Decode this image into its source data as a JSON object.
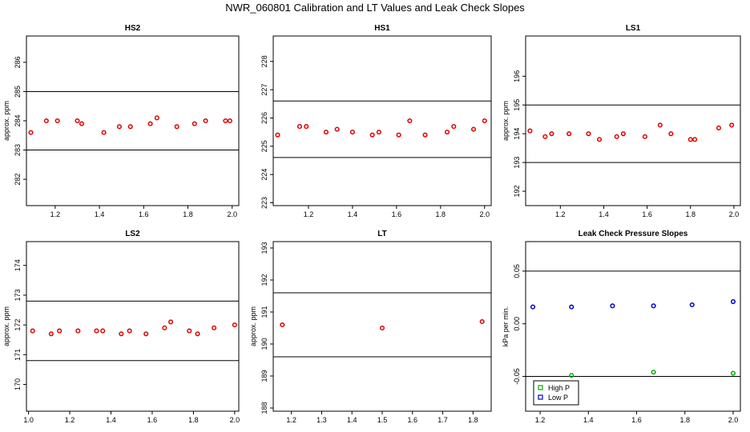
{
  "figure": {
    "title": "NWR_060801  Calibration and LT Values and Leak Check Slopes"
  },
  "chart_data": [
    {
      "id": "hs2",
      "type": "scatter",
      "title": "HS2",
      "ylabel": "approx. ppm",
      "xlim": [
        1.07,
        2.03
      ],
      "ylim": [
        281.1,
        286.9
      ],
      "xticks": [
        "1.2",
        "1.4",
        "1.6",
        "1.8",
        "2.0"
      ],
      "yticks": [
        "282",
        "283",
        "284",
        "285",
        "286"
      ],
      "hlines": [
        285.0,
        283.0
      ],
      "series": [
        {
          "color": "#dd0000",
          "x": [
            1.09,
            1.16,
            1.21,
            1.3,
            1.32,
            1.42,
            1.49,
            1.54,
            1.63,
            1.66,
            1.75,
            1.83,
            1.88,
            1.97,
            1.99
          ],
          "y": [
            283.6,
            284.0,
            284.0,
            284.0,
            283.9,
            283.6,
            283.8,
            283.8,
            283.9,
            284.1,
            283.8,
            283.9,
            284.0,
            284.0,
            284.0
          ]
        }
      ]
    },
    {
      "id": "hs1",
      "type": "scatter",
      "title": "HS1",
      "ylabel": "",
      "xlim": [
        1.04,
        2.03
      ],
      "ylim": [
        222.9,
        228.9
      ],
      "xticks": [
        "1.2",
        "1.4",
        "1.6",
        "1.8",
        "2.0"
      ],
      "yticks": [
        "223",
        "224",
        "225",
        "226",
        "227",
        "228"
      ],
      "hlines": [
        226.6,
        224.6
      ],
      "series": [
        {
          "color": "#dd0000",
          "x": [
            1.06,
            1.16,
            1.19,
            1.28,
            1.33,
            1.4,
            1.49,
            1.52,
            1.61,
            1.66,
            1.73,
            1.83,
            1.86,
            1.95,
            2.0
          ],
          "y": [
            225.4,
            225.7,
            225.7,
            225.5,
            225.6,
            225.5,
            225.4,
            225.5,
            225.4,
            225.9,
            225.4,
            225.5,
            225.7,
            225.6,
            225.9
          ]
        }
      ]
    },
    {
      "id": "ls1",
      "type": "scatter",
      "title": "LS1",
      "ylabel": "approx. ppm",
      "xlim": [
        1.04,
        2.03
      ],
      "ylim": [
        191.5,
        197.4
      ],
      "xticks": [
        "1.2",
        "1.4",
        "1.6",
        "1.8",
        "2.0"
      ],
      "yticks": [
        "192",
        "193",
        "194",
        "195",
        "196"
      ],
      "hlines": [
        195.0,
        193.0
      ],
      "series": [
        {
          "color": "#dd0000",
          "x": [
            1.06,
            1.13,
            1.16,
            1.24,
            1.33,
            1.38,
            1.46,
            1.49,
            1.59,
            1.66,
            1.71,
            1.8,
            1.82,
            1.93,
            1.99
          ],
          "y": [
            194.1,
            193.9,
            194.0,
            194.0,
            194.0,
            193.8,
            193.9,
            194.0,
            193.9,
            194.3,
            194.0,
            193.8,
            193.8,
            194.2,
            194.3
          ]
        }
      ]
    },
    {
      "id": "ls2",
      "type": "scatter",
      "title": "LS2",
      "ylabel": "approx. ppm",
      "xlim": [
        0.99,
        2.02
      ],
      "ylim": [
        169.1,
        174.8
      ],
      "xticks": [
        "1.0",
        "1.2",
        "1.4",
        "1.6",
        "1.8",
        "2.0"
      ],
      "yticks": [
        "170",
        "171",
        "172",
        "173",
        "174"
      ],
      "hlines": [
        172.8,
        170.8
      ],
      "series": [
        {
          "color": "#dd0000",
          "x": [
            1.02,
            1.11,
            1.15,
            1.24,
            1.33,
            1.36,
            1.45,
            1.49,
            1.57,
            1.66,
            1.69,
            1.78,
            1.82,
            1.9,
            2.0
          ],
          "y": [
            171.8,
            171.7,
            171.8,
            171.8,
            171.8,
            171.8,
            171.7,
            171.8,
            171.7,
            171.9,
            172.1,
            171.8,
            171.7,
            171.9,
            172.0
          ]
        }
      ]
    },
    {
      "id": "lt",
      "type": "scatter",
      "title": "LT",
      "ylabel": "approx. ppm",
      "xlim": [
        1.14,
        1.86
      ],
      "ylim": [
        187.9,
        193.2
      ],
      "xticks": [
        "1.2",
        "1.3",
        "1.4",
        "1.5",
        "1.6",
        "1.7",
        "1.8"
      ],
      "yticks": [
        "188",
        "189",
        "190",
        "191",
        "192",
        "193"
      ],
      "hlines": [
        191.6,
        189.6
      ],
      "series": [
        {
          "color": "#dd0000",
          "x": [
            1.17,
            1.5,
            1.83
          ],
          "y": [
            190.6,
            190.5,
            190.7
          ]
        }
      ]
    },
    {
      "id": "leak",
      "type": "scatter",
      "title": "Leak Check Pressure Slopes",
      "ylabel": "kPa per min.",
      "xlim": [
        1.14,
        2.03
      ],
      "ylim": [
        -0.083,
        0.078
      ],
      "xticks": [
        "1.2",
        "1.4",
        "1.6",
        "1.8",
        "2.0"
      ],
      "yticks": [
        "-0.05",
        "0.00",
        "0.05"
      ],
      "hlines": [
        0.05,
        -0.05
      ],
      "legend": {
        "position": "bottom-left",
        "entries": [
          {
            "label": "High P",
            "color": "#00aa00"
          },
          {
            "label": "Low P",
            "color": "#0000cc"
          }
        ]
      },
      "series": [
        {
          "name": "High P",
          "color": "#00aa00",
          "x": [
            1.33,
            1.67,
            2.0
          ],
          "y": [
            -0.049,
            -0.046,
            -0.047
          ]
        },
        {
          "name": "Low P",
          "color": "#0000cc",
          "x": [
            1.17,
            1.33,
            1.5,
            1.67,
            1.83,
            2.0
          ],
          "y": [
            0.016,
            0.016,
            0.017,
            0.017,
            0.018,
            0.021
          ]
        }
      ]
    }
  ]
}
